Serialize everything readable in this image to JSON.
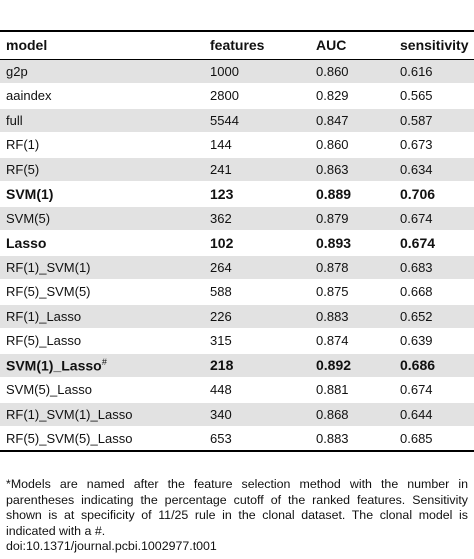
{
  "table": {
    "headers": [
      "model",
      "features",
      "AUC",
      "sensitivity"
    ],
    "rows": [
      {
        "model": "g2p",
        "sup": "",
        "features": "1000",
        "auc": "0.860",
        "sensitivity": "0.616",
        "bold": false
      },
      {
        "model": "aaindex",
        "sup": "",
        "features": "2800",
        "auc": "0.829",
        "sensitivity": "0.565",
        "bold": false
      },
      {
        "model": "full",
        "sup": "",
        "features": "5544",
        "auc": "0.847",
        "sensitivity": "0.587",
        "bold": false
      },
      {
        "model": "RF(1)",
        "sup": "",
        "features": "144",
        "auc": "0.860",
        "sensitivity": "0.673",
        "bold": false
      },
      {
        "model": "RF(5)",
        "sup": "",
        "features": "241",
        "auc": "0.863",
        "sensitivity": "0.634",
        "bold": false
      },
      {
        "model": "SVM(1)",
        "sup": "",
        "features": "123",
        "auc": "0.889",
        "sensitivity": "0.706",
        "bold": true
      },
      {
        "model": "SVM(5)",
        "sup": "",
        "features": "362",
        "auc": "0.879",
        "sensitivity": "0.674",
        "bold": false
      },
      {
        "model": "Lasso",
        "sup": "",
        "features": "102",
        "auc": "0.893",
        "sensitivity": "0.674",
        "bold": true
      },
      {
        "model": "RF(1)_SVM(1)",
        "sup": "",
        "features": "264",
        "auc": "0.878",
        "sensitivity": "0.683",
        "bold": false
      },
      {
        "model": "RF(5)_SVM(5)",
        "sup": "",
        "features": "588",
        "auc": "0.875",
        "sensitivity": "0.668",
        "bold": false
      },
      {
        "model": "RF(1)_Lasso",
        "sup": "",
        "features": "226",
        "auc": "0.883",
        "sensitivity": "0.652",
        "bold": false
      },
      {
        "model": "RF(5)_Lasso",
        "sup": "",
        "features": "315",
        "auc": "0.874",
        "sensitivity": "0.639",
        "bold": false
      },
      {
        "model": "SVM(1)_Lasso",
        "sup": "#",
        "features": "218",
        "auc": "0.892",
        "sensitivity": "0.686",
        "bold": true
      },
      {
        "model": "SVM(5)_Lasso",
        "sup": "",
        "features": "448",
        "auc": "0.881",
        "sensitivity": "0.674",
        "bold": false
      },
      {
        "model": "RF(1)_SVM(1)_Lasso",
        "sup": "",
        "features": "340",
        "auc": "0.868",
        "sensitivity": "0.644",
        "bold": false
      },
      {
        "model": "RF(5)_SVM(5)_Lasso",
        "sup": "",
        "features": "653",
        "auc": "0.883",
        "sensitivity": "0.685",
        "bold": false
      }
    ]
  },
  "footnote": "*Models are named after the feature selection method with the number in parentheses indicating the percentage cutoff of the ranked features. Sensitivity shown is at specificity of 11/25 rule in the clonal dataset. The clonal model is indicated with a #.",
  "doi": "doi:10.1371/journal.pcbi.1002977.t001",
  "colors": {
    "stripe": "#e2e2e2",
    "rule": "#000000"
  }
}
